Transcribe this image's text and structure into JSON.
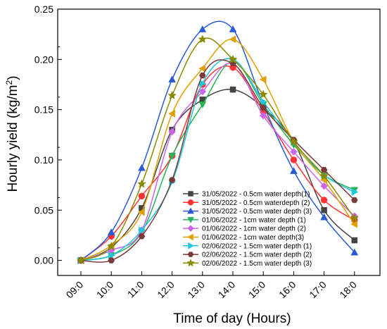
{
  "chart_data": {
    "type": "line",
    "xlabel": "Time of day (Hours)",
    "ylabel_main": "Hourly yield (kg/m",
    "ylabel_sup": "2",
    "ylabel_end": ")",
    "categories": [
      "09:0",
      "10:0",
      "11:0",
      "12:0",
      "13:0",
      "14:0",
      "15:0",
      "16:0",
      "17:0",
      "18:0"
    ],
    "yticks": [
      "0.00",
      "0.05",
      "0.10",
      "0.15",
      "0.20",
      "0.25"
    ],
    "ylim": [
      -0.015,
      0.25
    ],
    "grid": false,
    "legend_position": "bottom-right",
    "series": [
      {
        "name": "31/05/2022 - 0.5cm water depth(1)",
        "color": "#444444",
        "marker": "square",
        "values": [
          0,
          0.013,
          0.052,
          0.13,
          0.16,
          0.17,
          0.152,
          0.118,
          0.05,
          0.02
        ]
      },
      {
        "name": "31/05/2022 - 0.5cm waterdepth (2)",
        "color": "#ff3333",
        "marker": "circle",
        "values": [
          0,
          0.024,
          0.064,
          0.104,
          0.175,
          0.192,
          0.148,
          0.1,
          0.06,
          0.04
        ]
      },
      {
        "name": "31/05/2022 - 0.5cm water depth (3)",
        "color": "#2a5ad4",
        "marker": "triangle-up",
        "values": [
          0,
          0.028,
          0.092,
          0.18,
          0.23,
          0.23,
          0.155,
          0.089,
          0.043,
          0.008
        ]
      },
      {
        "name": "01/06/2022 - 1cm water depth (1)",
        "color": "#27b35a",
        "marker": "triangle-down",
        "values": [
          0,
          0.005,
          0.028,
          0.104,
          0.155,
          0.198,
          0.155,
          0.115,
          0.085,
          0.07
        ]
      },
      {
        "name": "01/06/2022 - 1cm water depth (2)",
        "color": "#cc66e6",
        "marker": "diamond",
        "values": [
          0,
          0.01,
          0.03,
          0.128,
          0.168,
          0.196,
          0.144,
          0.108,
          0.074,
          0.044
        ]
      },
      {
        "name": "01/06/2022 - 1cm water depth(3)",
        "color": "#e0a000",
        "marker": "triangle-left",
        "values": [
          0,
          0.015,
          0.048,
          0.146,
          0.191,
          0.22,
          0.18,
          0.118,
          0.08,
          0.036
        ]
      },
      {
        "name": "02/06/2022 - 1.5cm water depth (1)",
        "color": "#1ec8d8",
        "marker": "triangle-right",
        "values": [
          0,
          0.005,
          0.03,
          0.078,
          0.176,
          0.2,
          0.158,
          0.118,
          0.085,
          0.068
        ]
      },
      {
        "name": "02/06/2022 - 1.5cm water depth (2)",
        "color": "#7a3a3a",
        "marker": "hexagon",
        "values": [
          0,
          0,
          0.024,
          0.08,
          0.184,
          0.196,
          0.152,
          0.12,
          0.09,
          0.06
        ]
      },
      {
        "name": "02/06/2022 - 1.5cm water depth (3)",
        "color": "#8a8a00",
        "marker": "star",
        "values": [
          0,
          0.014,
          0.076,
          0.164,
          0.22,
          0.2,
          0.165,
          0.118,
          0.084,
          0.042
        ]
      }
    ]
  }
}
